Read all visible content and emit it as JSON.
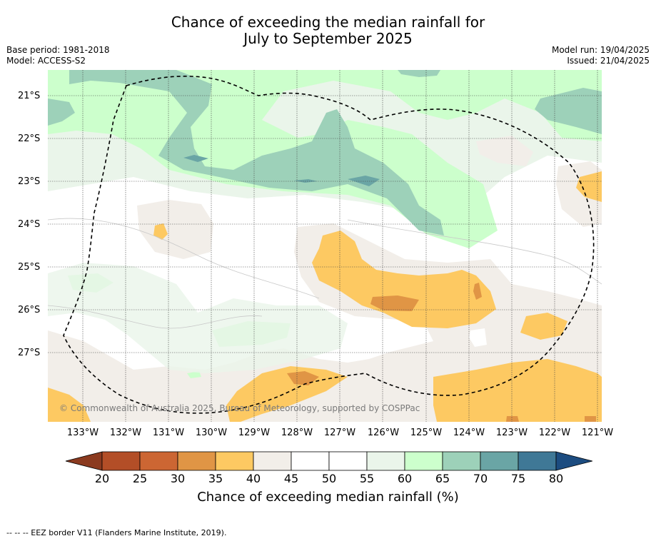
{
  "title_line1": "Chance of exceeding the median rainfall for",
  "title_line2": "July to September 2025",
  "base_period": "Base period: 1981-2018",
  "model": "Model: ACCESS-S2",
  "model_run": "Model run: 19/04/2025",
  "issued": "Issued: 21/04/2025",
  "copyright": "© Commonwealth of Australia 2025, Bureau of Meteorology, supported by COSPPac",
  "lat_labels": [
    "21°S",
    "22°S",
    "23°S",
    "24°S",
    "25°S",
    "26°S",
    "27°S"
  ],
  "lon_labels": [
    "133°W",
    "132°W",
    "131°W",
    "130°W",
    "129°W",
    "128°W",
    "127°W",
    "126°W",
    "125°W",
    "124°W",
    "123°W",
    "122°W",
    "121°W"
  ],
  "colorbar": {
    "label": "Chance of exceeding median rainfall (%)",
    "ticks": [
      "20",
      "25",
      "30",
      "35",
      "40",
      "45",
      "50",
      "55",
      "60",
      "65",
      "70",
      "75",
      "80"
    ],
    "colors": [
      "#8b3a1f",
      "#b34e27",
      "#cc6633",
      "#e09545",
      "#fdc962",
      "#f2eee9",
      "#ffffff",
      "#ffffff",
      "#eaf5ea",
      "#ccffcc",
      "#9dd1b9",
      "#6aa5a5",
      "#3f7896",
      "#1c4c80"
    ]
  },
  "footer": "-- -- -- EEZ border V11 (Flanders Marine Institute, 2019)."
}
